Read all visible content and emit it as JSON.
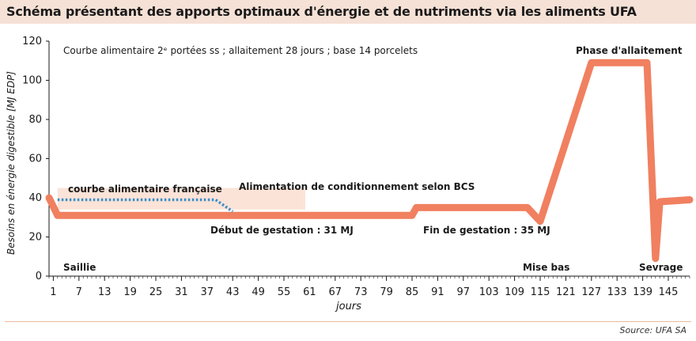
{
  "chart_data": {
    "type": "line",
    "title": "Schéma présentant des apports optimaux d'énergie et de nutriments via les aliments UFA",
    "subtitle": "Courbe alimentaire 2ᵉ portées ss ; allaitement 28 jours ; base 14 porcelets",
    "xlabel": "jours",
    "ylabel": "Besoins en énergie digestible [MJ EDP]",
    "xlim": [
      0,
      150
    ],
    "ylim": [
      0,
      120
    ],
    "xticks": [
      1,
      7,
      13,
      19,
      25,
      31,
      37,
      43,
      49,
      55,
      61,
      67,
      73,
      79,
      85,
      91,
      97,
      103,
      109,
      115,
      121,
      127,
      133,
      139,
      145
    ],
    "yticks": [
      0,
      20,
      40,
      60,
      80,
      100,
      120
    ],
    "series": [
      {
        "name": "Alimentation de conditionnement selon BCS",
        "color": "#f08060",
        "x": [
          0,
          2,
          85,
          86,
          112,
          115,
          127,
          140,
          142,
          143,
          150
        ],
        "y": [
          40,
          31,
          31,
          35,
          35,
          28,
          109,
          109,
          9,
          38,
          39
        ]
      },
      {
        "name": "courbe alimentaire française",
        "color": "#3a8fc8",
        "x": [
          2,
          39,
          43
        ],
        "y": [
          39,
          39,
          33
        ]
      }
    ],
    "shaded_band": {
      "x": [
        2,
        60
      ],
      "y": [
        34,
        45
      ],
      "color": "#fbe3d8"
    },
    "annotations": {
      "saillie": "Saillie",
      "debut_gestation": "Début de gestation : 31 MJ",
      "fin_gestation": "Fin de gestation : 35 MJ",
      "mise_bas": "Mise bas",
      "phase_allaitement": "Phase d'allaitement",
      "sevrage": "Sevrage"
    },
    "source": "Source: UFA SA",
    "grid": false
  }
}
